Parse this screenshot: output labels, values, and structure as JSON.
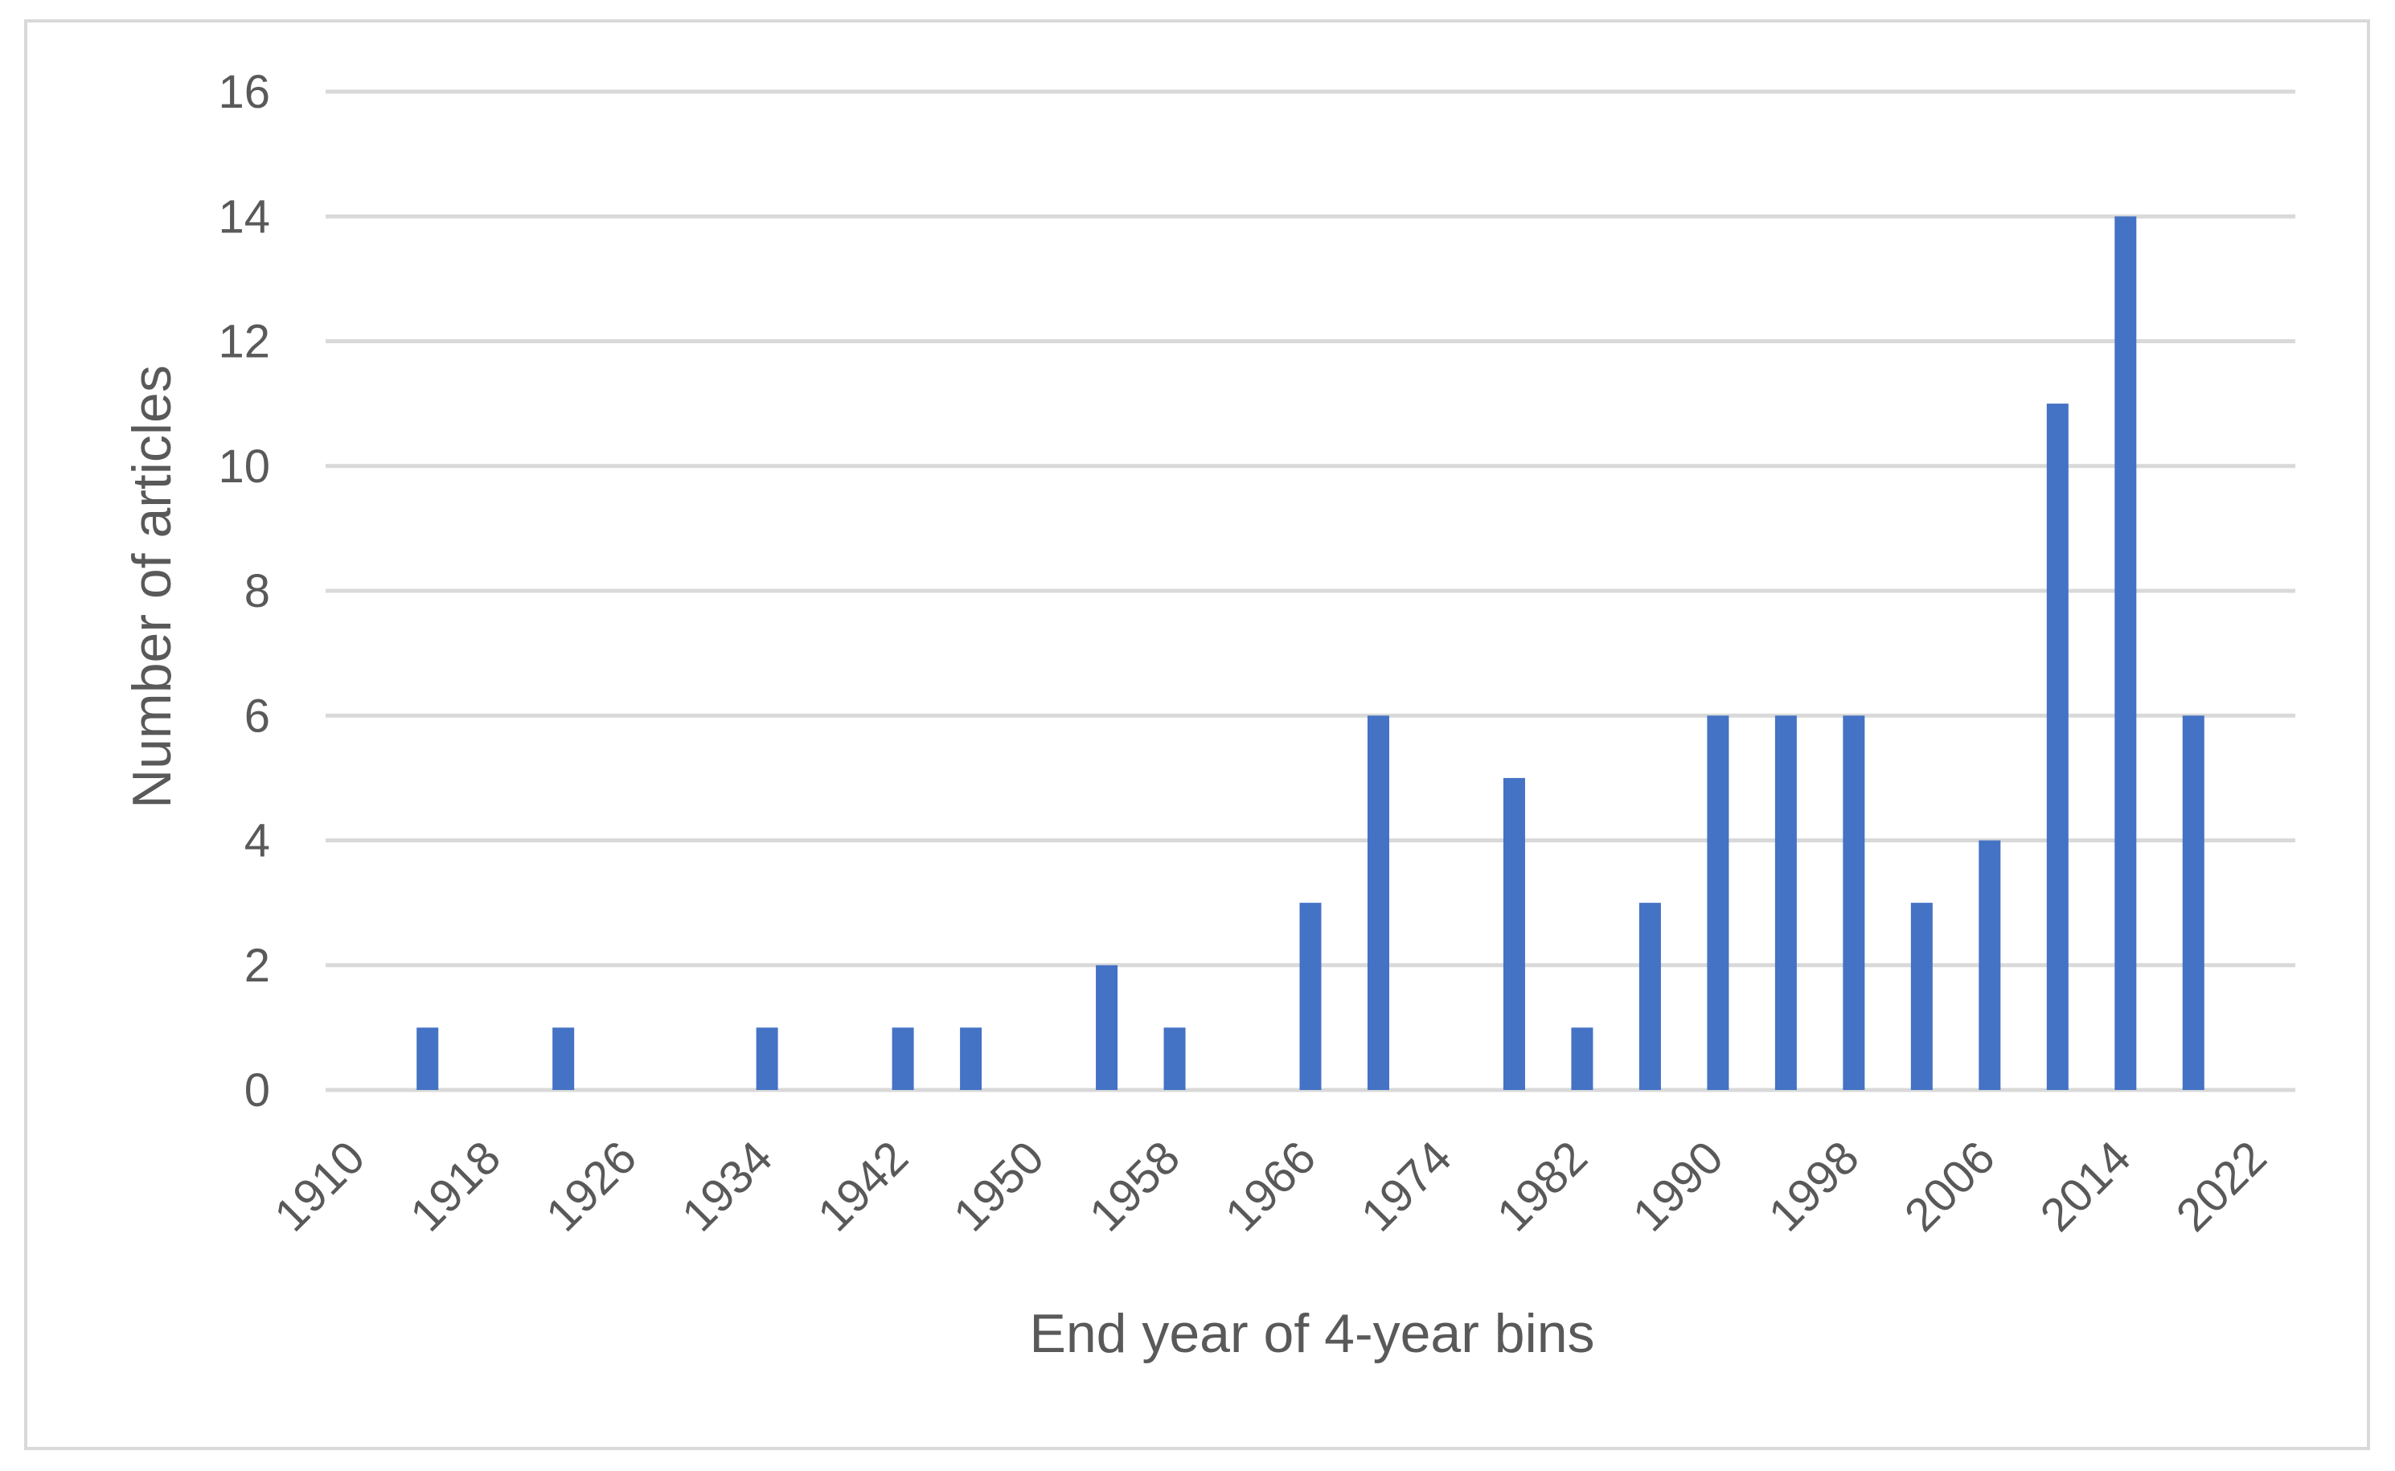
{
  "chart_data": {
    "type": "bar",
    "title": "",
    "xlabel": "End year of 4-year bins",
    "ylabel": "Number of articles",
    "ylim": [
      0,
      16
    ],
    "yticks": [
      0,
      2,
      4,
      6,
      8,
      10,
      12,
      14,
      16
    ],
    "grid": true,
    "legend": "none",
    "bar_color": "#4472c4",
    "grid_color": "#d9d9d9",
    "text_color": "#595959",
    "categories": [
      "1910",
      "1914",
      "1918",
      "1922",
      "1926",
      "1930",
      "1934",
      "1938",
      "1942",
      "1946",
      "1950",
      "1954",
      "1958",
      "1962",
      "1966",
      "1970",
      "1974",
      "1978",
      "1982",
      "1986",
      "1990",
      "1994",
      "1998",
      "2002",
      "2006",
      "2010",
      "2014",
      "2018",
      "2022"
    ],
    "category_labels_shown": [
      "1910",
      "1918",
      "1926",
      "1934",
      "1942",
      "1950",
      "1958",
      "1966",
      "1974",
      "1982",
      "1990",
      "1998",
      "2006",
      "2014",
      "2022"
    ],
    "values": [
      0,
      1,
      0,
      1,
      0,
      0,
      1,
      0,
      1,
      1,
      0,
      2,
      1,
      0,
      3,
      6,
      0,
      5,
      1,
      3,
      6,
      6,
      6,
      3,
      4,
      11,
      14,
      6,
      0
    ]
  }
}
